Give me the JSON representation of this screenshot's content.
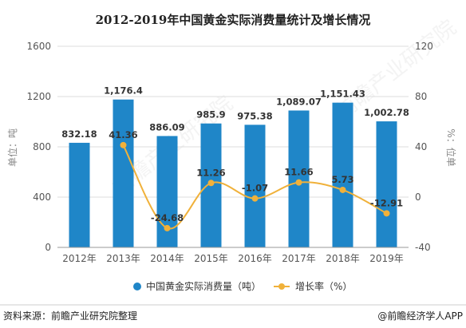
{
  "title": "2012-2019年中国黄金实际消费量统计及增长情况",
  "watermark": "前瞻产业研究院",
  "footer": {
    "source": "资料来源：前瞻产业研究院整理",
    "brand": "@前瞻经济学人APP"
  },
  "colors": {
    "bar": "#1f86c8",
    "line": "#f0b13a",
    "grid": "#dddddd"
  },
  "chart_data": {
    "type": "bar+line",
    "categories": [
      "2012年",
      "2013年",
      "2014年",
      "2015年",
      "2016年",
      "2017年",
      "2018年",
      "2019年"
    ],
    "series": [
      {
        "name": "中国黄金实际消费量（吨）",
        "type": "bar",
        "axis": "left",
        "values": [
          832.18,
          1176.4,
          886.09,
          985.9,
          975.38,
          1089.07,
          1151.43,
          1002.78
        ],
        "labels": [
          "832.18",
          "1,176.4",
          "886.09",
          "985.9",
          "975.38",
          "1,089.07",
          "1,151.43",
          "1,002.78"
        ]
      },
      {
        "name": "增长率（%）",
        "type": "line",
        "axis": "right",
        "values": [
          null,
          41.36,
          -24.68,
          11.26,
          -1.07,
          11.66,
          5.73,
          -12.91
        ],
        "labels": [
          "",
          "41.36",
          "-24.68",
          "11.26",
          "-1.07",
          "11.66",
          "5.73",
          "-12.91"
        ]
      }
    ],
    "y_left": {
      "label": "单位：吨",
      "range": [
        0,
        1600
      ],
      "ticks": [
        0,
        400,
        800,
        1200,
        1600
      ]
    },
    "y_right": {
      "label": "%：位单",
      "range": [
        -40,
        120
      ],
      "ticks": [
        -40,
        0,
        40,
        80,
        120
      ]
    },
    "legend": "bottom"
  }
}
